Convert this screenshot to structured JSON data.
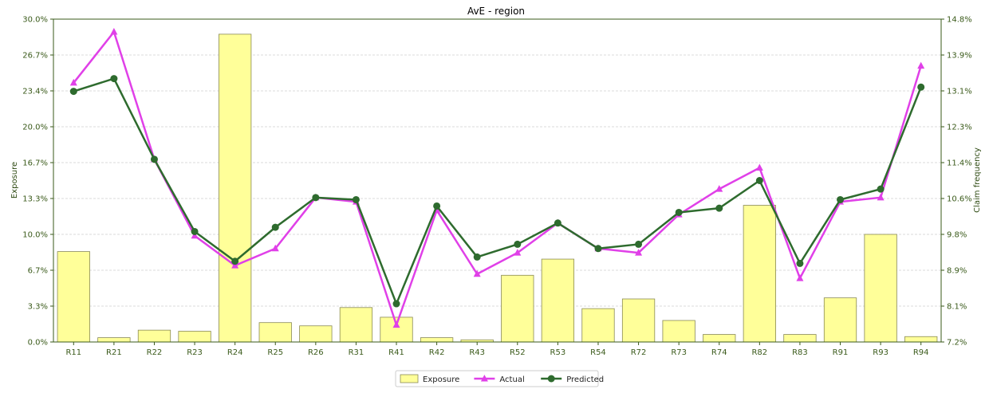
{
  "chart_data": {
    "type": "bar",
    "title": "AvE - region",
    "xlabel": "",
    "ylabel": "Exposure",
    "y2label": "Claim frequency",
    "categories": [
      "R11",
      "R21",
      "R22",
      "R23",
      "R24",
      "R25",
      "R26",
      "R31",
      "R41",
      "R42",
      "R43",
      "R52",
      "R53",
      "R54",
      "R72",
      "R73",
      "R74",
      "R82",
      "R83",
      "R91",
      "R93",
      "R94"
    ],
    "ylim": [
      0,
      30
    ],
    "y_ticks": [
      "0.0%",
      "3.3%",
      "6.7%",
      "10.0%",
      "13.3%",
      "16.7%",
      "20.0%",
      "23.4%",
      "26.7%",
      "30.0%"
    ],
    "y2lim": [
      7.2,
      14.8
    ],
    "y2_ticks": [
      "7.2%",
      "8.1%",
      "8.9%",
      "9.8%",
      "10.6%",
      "11.4%",
      "12.3%",
      "13.1%",
      "13.9%",
      "14.8%"
    ],
    "grid": true,
    "legend_position": "bottom-center",
    "series": [
      {
        "name": "Exposure",
        "kind": "bar",
        "axis": "left",
        "color": "#ffff99",
        "values": [
          8.4,
          0.4,
          1.1,
          1.0,
          28.6,
          1.8,
          1.5,
          3.2,
          2.3,
          0.4,
          0.2,
          6.2,
          7.7,
          3.1,
          4.0,
          2.0,
          0.7,
          12.7,
          0.7,
          4.1,
          10.0,
          0.5
        ]
      },
      {
        "name": "Actual",
        "kind": "line",
        "axis": "right",
        "color": "#e040e8",
        "values": [
          13.3,
          14.5,
          11.5,
          9.7,
          9.0,
          9.4,
          10.6,
          10.5,
          7.6,
          10.3,
          8.8,
          9.3,
          10.0,
          9.4,
          9.3,
          10.2,
          10.8,
          11.3,
          8.7,
          10.5,
          10.6,
          13.7
        ]
      },
      {
        "name": "Predicted",
        "kind": "line",
        "axis": "right",
        "color": "#2e6b2e",
        "values": [
          13.1,
          13.4,
          11.5,
          9.8,
          9.1,
          9.9,
          10.6,
          10.55,
          8.1,
          10.4,
          9.2,
          9.5,
          10.0,
          9.4,
          9.5,
          10.25,
          10.35,
          11.0,
          9.05,
          10.55,
          10.8,
          13.2
        ]
      }
    ]
  }
}
